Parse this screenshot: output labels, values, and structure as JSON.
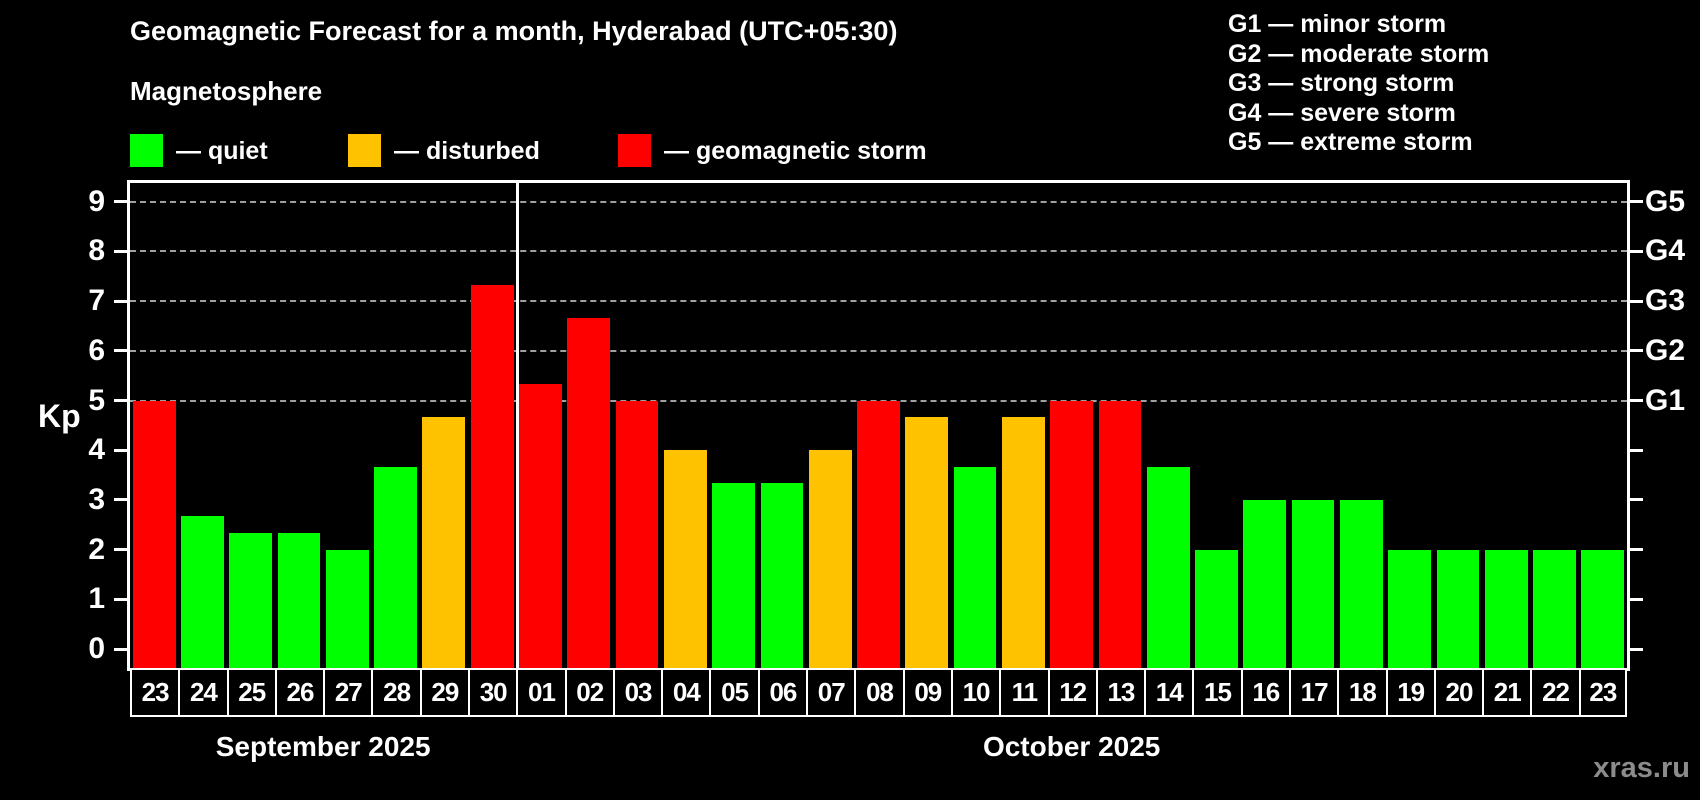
{
  "title": "Geomagnetic Forecast for a month, Hyderabad (UTC+05:30)",
  "legend": {
    "title": "Magnetosphere",
    "items": [
      {
        "key": "quiet",
        "label": "— quiet"
      },
      {
        "key": "disturbed",
        "label": "— disturbed"
      },
      {
        "key": "storm",
        "label": "— geomagnetic storm"
      }
    ]
  },
  "g_legend_lines": [
    "G1 — minor storm",
    "G2 — moderate storm",
    "G3 — strong storm",
    "G4 — severe storm",
    "G5 — extreme storm"
  ],
  "watermark": "xras.ru",
  "colors": {
    "background": "#000000",
    "quiet": "#00ff00",
    "disturbed": "#ffc200",
    "storm": "#ff0000",
    "axis": "#ffffff",
    "grid": "#a0a0a0",
    "watermark": "#8c8c8c"
  },
  "chart_data": {
    "type": "bar",
    "title": "Geomagnetic Forecast for a month, Hyderabad (UTC+05:30)",
    "ylabel": "Kp",
    "ylim": [
      0,
      9.4
    ],
    "yticks": [
      0,
      1,
      2,
      3,
      4,
      5,
      6,
      7,
      8,
      9
    ],
    "grid_levels": [
      5,
      6,
      7,
      8,
      9
    ],
    "right_axis": [
      {
        "kp": 5,
        "label": "G1"
      },
      {
        "kp": 6,
        "label": "G2"
      },
      {
        "kp": 7,
        "label": "G3"
      },
      {
        "kp": 8,
        "label": "G4"
      },
      {
        "kp": 9,
        "label": "G5"
      }
    ],
    "thresholds": {
      "storm_min_kp": 5,
      "disturbed_min_kp": 4
    },
    "legend_position": "top-left",
    "grid": "dashed, G-levels only",
    "months": [
      {
        "label": "September 2025",
        "bars": [
          {
            "day": "23",
            "kp": 5.0
          },
          {
            "day": "24",
            "kp": 2.67
          },
          {
            "day": "25",
            "kp": 2.33
          },
          {
            "day": "26",
            "kp": 2.33
          },
          {
            "day": "27",
            "kp": 2.0
          },
          {
            "day": "28",
            "kp": 3.67
          },
          {
            "day": "29",
            "kp": 4.67
          },
          {
            "day": "30",
            "kp": 7.33
          }
        ]
      },
      {
        "label": "October 2025",
        "bars": [
          {
            "day": "01",
            "kp": 5.33
          },
          {
            "day": "02",
            "kp": 6.67
          },
          {
            "day": "03",
            "kp": 5.0
          },
          {
            "day": "04",
            "kp": 4.0
          },
          {
            "day": "05",
            "kp": 3.33
          },
          {
            "day": "06",
            "kp": 3.33
          },
          {
            "day": "07",
            "kp": 4.0
          },
          {
            "day": "08",
            "kp": 5.0
          },
          {
            "day": "09",
            "kp": 4.67
          },
          {
            "day": "10",
            "kp": 3.67
          },
          {
            "day": "11",
            "kp": 4.67
          },
          {
            "day": "12",
            "kp": 5.0
          },
          {
            "day": "13",
            "kp": 5.0
          },
          {
            "day": "14",
            "kp": 3.67
          },
          {
            "day": "15",
            "kp": 2.0
          },
          {
            "day": "16",
            "kp": 3.0
          },
          {
            "day": "17",
            "kp": 3.0
          },
          {
            "day": "18",
            "kp": 3.0
          },
          {
            "day": "19",
            "kp": 2.0
          },
          {
            "day": "20",
            "kp": 2.0
          },
          {
            "day": "21",
            "kp": 2.0
          },
          {
            "day": "22",
            "kp": 2.0
          },
          {
            "day": "23",
            "kp": 2.0
          }
        ]
      }
    ]
  }
}
